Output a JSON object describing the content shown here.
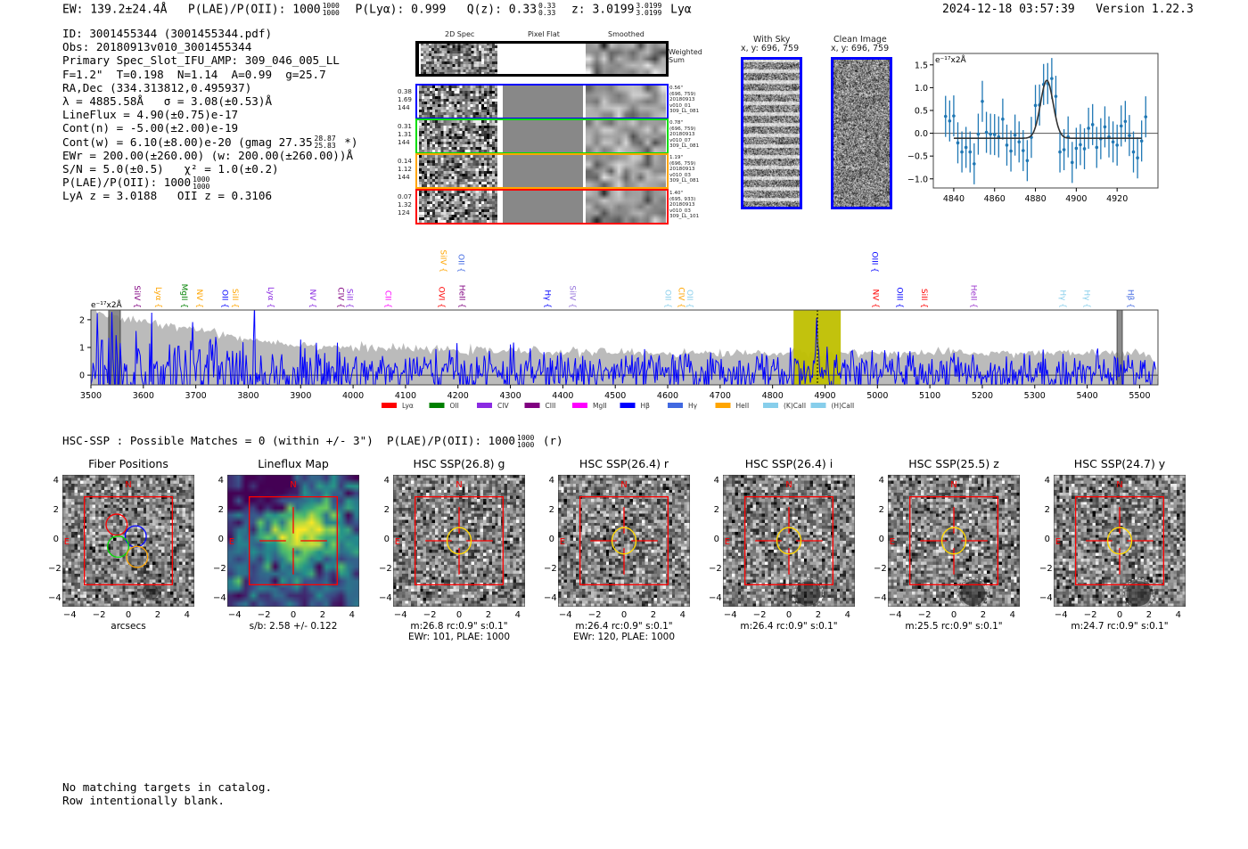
{
  "header": {
    "ew": "EW: 139.2±24.4Å",
    "plae_label": "P(LAE)/P(OII): 1000",
    "plae_hi": "1000",
    "plae_lo": "1000",
    "plya": "P(Lyα): 0.999",
    "qz_label": "Q(z): 0.33",
    "qz_hi": "0.33",
    "qz_lo": "0.33",
    "z_label": "z: 3.0199",
    "z_hi": "3.0199",
    "z_lo": "3.0199",
    "z_line": "Lyα",
    "timestamp": "2024-12-18 03:57:39",
    "version": "Version 1.22.3"
  },
  "info": {
    "id": "ID: 3001455344 (3001455344.pdf)",
    "obs": "Obs: 20180913v010_3001455344",
    "primary": "Primary Spec_Slot_IFU_AMP: 309_046_005_LL",
    "params": "F=1.2\"  T=0.198  N=1.14  A=0.99  g=25.7",
    "radec": "RA,Dec (334.313812,0.495937)",
    "lambda": "λ = 4885.58Å   σ = 3.08(±0.53)Å",
    "lineflux": "LineFlux = 4.90(±0.75)e-17",
    "cont_n": "Cont(n) = -5.00(±2.00)e-19",
    "cont_w": "Cont(w) = 6.10(±8.00)e-20 (gmag 27.35",
    "gmag_hi": "28.87",
    "gmag_lo": "25.83",
    "cont_w_end": "*)",
    "ewr": "EWr = 200.00(±260.00) (w: 200.00(±260.00))Å",
    "sn": "S/N = 5.0(±0.5)   χ² = 1.0(±0.2)",
    "plae": "P(LAE)/P(OII): 1000",
    "plae_hi": "1000",
    "plae_lo": "1000",
    "z": "LyA z = 3.0188   OII z = 0.3106"
  },
  "spec2d": {
    "columns": [
      "2D Spec",
      "Pixel Flat",
      "Smoothed"
    ],
    "weighted_label": "Weighted Sum",
    "rows": [
      {
        "color": "#0000ff",
        "left": [
          "0.38",
          "1.69",
          "144"
        ],
        "right": [
          "0.56\"",
          "(696, 759)",
          "20180913",
          "v010_01",
          "309_LL_081"
        ]
      },
      {
        "color": "#00dd00",
        "left": [
          "0.31",
          "1.31",
          "144"
        ],
        "right": [
          "0.78\"",
          "(696, 759)",
          "20180913",
          "v010_07",
          "309_LL_081"
        ]
      },
      {
        "color": "#ffa500",
        "left": [
          "0.14",
          "1.12",
          "144"
        ],
        "right": [
          "1.19\"",
          "(696, 759)",
          "20180913",
          "v010_03",
          "309_LL_081"
        ]
      },
      {
        "color": "#ff0000",
        "left": [
          "0.07",
          "1.32",
          "124"
        ],
        "right": [
          "1.40\"",
          "(695, 933)",
          "20180913",
          "v010_03",
          "309_LL_101"
        ]
      }
    ]
  },
  "sky": {
    "with_sky_title": "With Sky",
    "with_sky_xy": "x, y: 696, 759",
    "clean_title": "Clean Image",
    "clean_xy": "x, y: 696, 759"
  },
  "chart_data": [
    {
      "type": "scatter",
      "title": "",
      "ylabel": "e⁻¹⁷x2Å",
      "xlim": [
        4830,
        4940
      ],
      "ylim": [
        -1.2,
        1.75
      ],
      "xticks": [
        4840,
        4860,
        4880,
        4900,
        4920
      ],
      "yticks": [
        -1.0,
        -0.5,
        0.0,
        0.5,
        1.0,
        1.5
      ],
      "xtick_labels": [
        "4840",
        "4860",
        "4880",
        "4900",
        "4920"
      ],
      "ytick_labels": [
        "−1.0",
        "−0.5",
        "0.0",
        "0.5",
        "1.0",
        "1.5"
      ],
      "x": [
        4836,
        4838,
        4840,
        4842,
        4844,
        4846,
        4848,
        4850,
        4852,
        4854,
        4856,
        4858,
        4860,
        4862,
        4864,
        4866,
        4868,
        4870,
        4872,
        4874,
        4876,
        4878,
        4880,
        4882,
        4884,
        4886,
        4888,
        4890,
        4892,
        4894,
        4896,
        4898,
        4900,
        4902,
        4904,
        4906,
        4908,
        4910,
        4912,
        4914,
        4916,
        4918,
        4920,
        4922,
        4924,
        4926,
        4928,
        4930,
        4932,
        4934
      ],
      "y": [
        0.37,
        0.27,
        0.38,
        -0.21,
        -0.41,
        -0.31,
        -0.41,
        -0.67,
        -0.02,
        0.7,
        0.02,
        -0.02,
        -0.03,
        -0.08,
        0.31,
        -0.26,
        -0.39,
        -0.04,
        -0.19,
        -0.38,
        -0.6,
        -0.09,
        0.61,
        0.62,
        1.07,
        1.09,
        1.2,
        0.81,
        -0.41,
        -0.36,
        -0.08,
        -0.64,
        -0.33,
        -0.25,
        -0.34,
        0.11,
        0.19,
        -0.31,
        -0.12,
        0.14,
        -0.08,
        -0.19,
        -0.26,
        0.16,
        0.26,
        -0.05,
        -0.41,
        -0.54,
        -0.17,
        0.36
      ],
      "yerr": 0.45,
      "fit": {
        "center": 4885.58,
        "sigma": 3.08,
        "amplitude": 1.27,
        "continuum": -0.11,
        "range": [
          4840,
          4932
        ]
      },
      "color": "#1f77b4"
    },
    {
      "type": "line",
      "ylabel": "e⁻¹⁷x2Å",
      "xlim": [
        3500,
        5535
      ],
      "ylim": [
        -0.35,
        2.35
      ],
      "xticks": [
        3500,
        3600,
        3700,
        3800,
        3900,
        4000,
        4100,
        4200,
        4300,
        4400,
        4500,
        4600,
        4700,
        4800,
        4900,
        5000,
        5100,
        5200,
        5300,
        5400,
        5500
      ],
      "xtick_labels": [
        "3500",
        "3600",
        "3700",
        "3800",
        "3900",
        "4000",
        "4100",
        "4200",
        "4300",
        "4400",
        "4500",
        "4600",
        "4700",
        "4800",
        "4900",
        "5000",
        "5100",
        "5200",
        "5300",
        "5400",
        "5500"
      ],
      "yticks": [
        0,
        1,
        2
      ],
      "ytick_labels": [
        "0",
        "1",
        "2"
      ],
      "series": [
        {
          "name": "flux",
          "color": "#0000ff",
          "note": "noisy spectrum with emission at 4885.58"
        },
        {
          "name": "error",
          "color": "#bbbbbb",
          "envelope": [
            [
              3500,
              2.3
            ],
            [
              3600,
              1.9
            ],
            [
              3700,
              1.7
            ],
            [
              3800,
              1.3
            ],
            [
              3900,
              1.1
            ],
            [
              4000,
              1.0
            ],
            [
              4100,
              0.95
            ],
            [
              4200,
              0.9
            ],
            [
              4400,
              0.85
            ],
            [
              4600,
              0.8
            ],
            [
              5000,
              0.8
            ],
            [
              5500,
              0.8
            ],
            [
              5530,
              0.5
            ]
          ]
        }
      ],
      "highlight_band": {
        "range": [
          4840,
          4930
        ],
        "color": "#bfbf00",
        "line_center": 4885.58
      },
      "masked_bands": [
        [
          3534,
          3556
        ],
        [
          5457,
          5467
        ]
      ],
      "line_labels": [
        {
          "text": "SiIV",
          "wave": 3578,
          "color": "#800080",
          "row": 0
        },
        {
          "text": "Lyα",
          "wave": 3619,
          "color": "#ffa500",
          "row": 0
        },
        {
          "text": "MgII",
          "wave": 3668,
          "color": "#008000",
          "row": 0
        },
        {
          "text": "NV",
          "wave": 3697,
          "color": "#ffa500",
          "row": 0
        },
        {
          "text": "OII",
          "wave": 3746,
          "color": "#0000ff",
          "row": 0
        },
        {
          "text": "SiII",
          "wave": 3765,
          "color": "#ffa500",
          "row": 0
        },
        {
          "text": "Lyα",
          "wave": 3833,
          "color": "#8a2be2",
          "row": 0
        },
        {
          "text": "NV",
          "wave": 3913,
          "color": "#8a2be2",
          "row": 0
        },
        {
          "text": "CIV",
          "wave": 3967,
          "color": "#800080",
          "row": 0
        },
        {
          "text": "SiII",
          "wave": 3984,
          "color": "#8a2be2",
          "row": 0
        },
        {
          "text": "CII",
          "wave": 4057,
          "color": "#ff00ff",
          "row": 0
        },
        {
          "text": "OVI",
          "wave": 4159,
          "color": "#ff0000",
          "row": 0
        },
        {
          "text": "HeII",
          "wave": 4198,
          "color": "#800080",
          "row": 0
        },
        {
          "text": "Hγ",
          "wave": 4361,
          "color": "#0000ff",
          "row": 0
        },
        {
          "text": "SiIV",
          "wave": 4409,
          "color": "#9370db",
          "row": 0
        },
        {
          "text": "OII",
          "wave": 4591,
          "color": "#87ceeb",
          "row": 0
        },
        {
          "text": "CIV",
          "wave": 4616,
          "color": "#ffa500",
          "row": 0
        },
        {
          "text": "OII",
          "wave": 4632,
          "color": "#87ceeb",
          "row": 0
        },
        {
          "text": "NV",
          "wave": 4987,
          "color": "#ff0000",
          "row": 0
        },
        {
          "text": "OIII",
          "wave": 5033,
          "color": "#0000ff",
          "row": 0
        },
        {
          "text": "SiII",
          "wave": 5079,
          "color": "#ff0000",
          "row": 0
        },
        {
          "text": "HeII",
          "wave": 5174,
          "color": "#9932cc",
          "row": 0
        },
        {
          "text": "Hγ",
          "wave": 5344,
          "color": "#87ceeb",
          "row": 0
        },
        {
          "text": "Hγ",
          "wave": 5390,
          "color": "#87ceeb",
          "row": 0
        },
        {
          "text": "Hβ",
          "wave": 5473,
          "color": "#4169e1",
          "row": 0
        },
        {
          "text": "SiIV",
          "wave": 4162,
          "color": "#ffa500",
          "row": 1
        },
        {
          "text": "OII",
          "wave": 4196,
          "color": "#4169e1",
          "row": 1
        },
        {
          "text": "OIII",
          "wave": 4985,
          "color": "#0000ff",
          "row": 1
        }
      ],
      "legend": [
        {
          "label": "Lyα",
          "color": "#ff0000"
        },
        {
          "label": "OII",
          "color": "#008000"
        },
        {
          "label": "CIV",
          "color": "#8a2be2"
        },
        {
          "label": "CIII",
          "color": "#800080"
        },
        {
          "label": "MgII",
          "color": "#ff00ff"
        },
        {
          "label": "Hβ",
          "color": "#0000ff"
        },
        {
          "label": "Hγ",
          "color": "#4169e1"
        },
        {
          "label": "HeII",
          "color": "#ffa500"
        },
        {
          "label": "(K)CaII",
          "color": "#87ceeb"
        },
        {
          "label": "(H)CaII",
          "color": "#87ceeb"
        }
      ],
      "legend_placement": "below"
    }
  ],
  "hsc": {
    "summary": "HSC-SSP : Possible Matches = 0 (within +/- 3\")  P(LAE)/P(OII): 1000",
    "summary_hi": "1000",
    "summary_lo": "1000",
    "summary_end": "(r)",
    "tick_labels": [
      "4",
      "2",
      "0",
      "−2",
      "−4"
    ],
    "xtick_labels": [
      "−4",
      "−2",
      "0",
      "2",
      "4"
    ],
    "north": "N",
    "east": "E",
    "panels": [
      {
        "title": "Fiber Positions",
        "kind": "fibers",
        "captions": [
          "arcsecs"
        ]
      },
      {
        "title": "Lineflux Map",
        "kind": "lineflux",
        "captions": [
          "s/b: 2.58 +/- 0.122"
        ]
      },
      {
        "title": "HSC SSP(26.8) g",
        "kind": "cutout",
        "captions": [
          "m:26.8 rc:0.9\"  s:0.1\"",
          "EWr: 101, PLAE: 1000"
        ]
      },
      {
        "title": "HSC SSP(26.4) r",
        "kind": "cutout",
        "captions": [
          "m:26.4 rc:0.9\"  s:0.1\"",
          "EWr: 120, PLAE: 1000"
        ]
      },
      {
        "title": "HSC SSP(26.4) i",
        "kind": "cutout",
        "captions": [
          "m:26.4 rc:0.9\"  s:0.1\""
        ]
      },
      {
        "title": "HSC SSP(25.5) z",
        "kind": "cutout",
        "captions": [
          "m:25.5 rc:0.9\"  s:0.1\""
        ]
      },
      {
        "title": "HSC SSP(24.7) y",
        "kind": "cutout",
        "captions": [
          "m:24.7 rc:0.9\"  s:0.1\""
        ]
      }
    ]
  },
  "footer": {
    "line1": "No matching targets in catalog.",
    "line2": "Row intentionally blank."
  }
}
